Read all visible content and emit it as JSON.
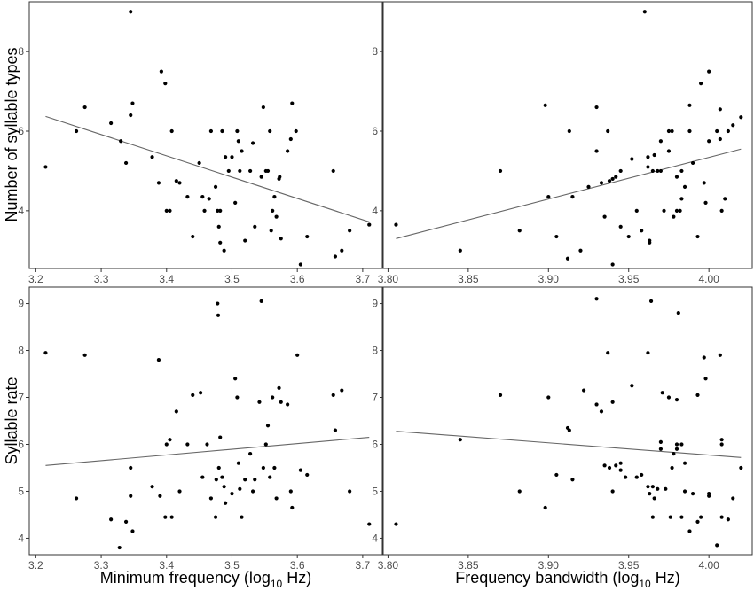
{
  "chart_data": [
    {
      "type": "scatter",
      "panel": "top-left",
      "xlabel": "",
      "ylabel": "Number of syllable types",
      "xlim": [
        3.19,
        3.73
      ],
      "ylim": [
        2.55,
        9.25
      ],
      "xticks": [
        3.2,
        3.3,
        3.4,
        3.5,
        3.6,
        3.7
      ],
      "xtick_labels": [
        "3.2",
        "3.3",
        "3.4",
        "3.5",
        "3.6",
        "3.7"
      ],
      "yticks": [
        4,
        6,
        8
      ],
      "ytick_labels": [
        "4",
        "6",
        "8"
      ],
      "trend_line": {
        "x": [
          3.215,
          3.71
        ],
        "y": [
          6.37,
          3.72
        ]
      },
      "points": [
        {
          "x": 3.215,
          "y": 5.1
        },
        {
          "x": 3.262,
          "y": 6.0
        },
        {
          "x": 3.275,
          "y": 6.6
        },
        {
          "x": 3.315,
          "y": 6.2
        },
        {
          "x": 3.33,
          "y": 5.75
        },
        {
          "x": 3.338,
          "y": 5.2
        },
        {
          "x": 3.345,
          "y": 6.4
        },
        {
          "x": 3.348,
          "y": 6.7
        },
        {
          "x": 3.345,
          "y": 9.0
        },
        {
          "x": 3.378,
          "y": 5.35
        },
        {
          "x": 3.388,
          "y": 4.7
        },
        {
          "x": 3.392,
          "y": 7.5
        },
        {
          "x": 3.398,
          "y": 7.2
        },
        {
          "x": 3.4,
          "y": 4.0
        },
        {
          "x": 3.405,
          "y": 4.0
        },
        {
          "x": 3.408,
          "y": 6.0
        },
        {
          "x": 3.415,
          "y": 4.75
        },
        {
          "x": 3.42,
          "y": 4.7
        },
        {
          "x": 3.432,
          "y": 4.35
        },
        {
          "x": 3.44,
          "y": 3.35
        },
        {
          "x": 3.45,
          "y": 5.2
        },
        {
          "x": 3.455,
          "y": 4.35
        },
        {
          "x": 3.458,
          "y": 4.0
        },
        {
          "x": 3.465,
          "y": 4.3
        },
        {
          "x": 3.468,
          "y": 6.0
        },
        {
          "x": 3.475,
          "y": 4.6
        },
        {
          "x": 3.478,
          "y": 4.0
        },
        {
          "x": 3.48,
          "y": 3.6
        },
        {
          "x": 3.482,
          "y": 4.0
        },
        {
          "x": 3.482,
          "y": 3.2
        },
        {
          "x": 3.485,
          "y": 6.0
        },
        {
          "x": 3.488,
          "y": 3.0
        },
        {
          "x": 3.49,
          "y": 5.35
        },
        {
          "x": 3.495,
          "y": 5.0
        },
        {
          "x": 3.5,
          "y": 5.35
        },
        {
          "x": 3.505,
          "y": 4.2
        },
        {
          "x": 3.508,
          "y": 6.0
        },
        {
          "x": 3.51,
          "y": 5.75
        },
        {
          "x": 3.512,
          "y": 5.0
        },
        {
          "x": 3.515,
          "y": 5.5
        },
        {
          "x": 3.52,
          "y": 3.25
        },
        {
          "x": 3.528,
          "y": 5.0
        },
        {
          "x": 3.532,
          "y": 5.7
        },
        {
          "x": 3.535,
          "y": 3.6
        },
        {
          "x": 3.545,
          "y": 4.85
        },
        {
          "x": 3.548,
          "y": 6.6
        },
        {
          "x": 3.552,
          "y": 5.0
        },
        {
          "x": 3.555,
          "y": 5.0
        },
        {
          "x": 3.558,
          "y": 6.0
        },
        {
          "x": 3.56,
          "y": 3.5
        },
        {
          "x": 3.562,
          "y": 4.0
        },
        {
          "x": 3.565,
          "y": 4.35
        },
        {
          "x": 3.568,
          "y": 3.85
        },
        {
          "x": 3.572,
          "y": 4.8
        },
        {
          "x": 3.573,
          "y": 4.85
        },
        {
          "x": 3.575,
          "y": 3.3
        },
        {
          "x": 3.585,
          "y": 5.5
        },
        {
          "x": 3.59,
          "y": 5.8
        },
        {
          "x": 3.592,
          "y": 6.7
        },
        {
          "x": 3.598,
          "y": 6.0
        },
        {
          "x": 3.605,
          "y": 2.65
        },
        {
          "x": 3.615,
          "y": 3.35
        },
        {
          "x": 3.655,
          "y": 5.0
        },
        {
          "x": 3.658,
          "y": 2.85
        },
        {
          "x": 3.668,
          "y": 3.0
        },
        {
          "x": 3.68,
          "y": 3.5
        },
        {
          "x": 3.71,
          "y": 3.65
        }
      ]
    },
    {
      "type": "scatter",
      "panel": "top-right",
      "xlabel": "",
      "ylabel": "",
      "xlim": [
        3.797,
        4.027
      ],
      "ylim": [
        2.55,
        9.25
      ],
      "xticks": [
        3.8,
        3.85,
        3.9,
        3.95,
        4.0
      ],
      "xtick_labels": [
        "3.80",
        "3.85",
        "3.90",
        "3.95",
        "4.00"
      ],
      "yticks": [
        4,
        6,
        8
      ],
      "ytick_labels": [
        "4",
        "6",
        "8"
      ],
      "trend_line": {
        "x": [
          3.805,
          4.02
        ],
        "y": [
          3.3,
          5.55
        ]
      },
      "points": [
        {
          "x": 3.805,
          "y": 3.65
        },
        {
          "x": 3.845,
          "y": 3.0
        },
        {
          "x": 3.87,
          "y": 5.0
        },
        {
          "x": 3.882,
          "y": 3.5
        },
        {
          "x": 3.898,
          "y": 6.65
        },
        {
          "x": 3.9,
          "y": 4.35
        },
        {
          "x": 3.905,
          "y": 3.35
        },
        {
          "x": 3.913,
          "y": 6.0
        },
        {
          "x": 3.912,
          "y": 2.8
        },
        {
          "x": 3.915,
          "y": 4.35
        },
        {
          "x": 3.92,
          "y": 3.0
        },
        {
          "x": 3.925,
          "y": 4.6
        },
        {
          "x": 3.93,
          "y": 6.6
        },
        {
          "x": 3.93,
          "y": 5.5
        },
        {
          "x": 3.933,
          "y": 4.7
        },
        {
          "x": 3.935,
          "y": 3.85
        },
        {
          "x": 3.937,
          "y": 6.0
        },
        {
          "x": 3.938,
          "y": 4.75
        },
        {
          "x": 3.94,
          "y": 4.8
        },
        {
          "x": 3.94,
          "y": 2.65
        },
        {
          "x": 3.942,
          "y": 4.85
        },
        {
          "x": 3.945,
          "y": 3.6
        },
        {
          "x": 3.945,
          "y": 5.0
        },
        {
          "x": 3.95,
          "y": 3.35
        },
        {
          "x": 3.952,
          "y": 5.3
        },
        {
          "x": 3.955,
          "y": 4.0
        },
        {
          "x": 3.958,
          "y": 3.5
        },
        {
          "x": 3.96,
          "y": 9.0
        },
        {
          "x": 3.962,
          "y": 5.1
        },
        {
          "x": 3.962,
          "y": 5.35
        },
        {
          "x": 3.963,
          "y": 3.25
        },
        {
          "x": 3.963,
          "y": 3.2
        },
        {
          "x": 3.965,
          "y": 5.0
        },
        {
          "x": 3.966,
          "y": 5.4
        },
        {
          "x": 3.968,
          "y": 5.0
        },
        {
          "x": 3.97,
          "y": 5.75
        },
        {
          "x": 3.97,
          "y": 5.0
        },
        {
          "x": 3.972,
          "y": 4.0
        },
        {
          "x": 3.975,
          "y": 5.5
        },
        {
          "x": 3.975,
          "y": 6.0
        },
        {
          "x": 3.977,
          "y": 6.0
        },
        {
          "x": 3.978,
          "y": 3.85
        },
        {
          "x": 3.98,
          "y": 4.0
        },
        {
          "x": 3.98,
          "y": 4.85
        },
        {
          "x": 3.982,
          "y": 4.0
        },
        {
          "x": 3.983,
          "y": 4.3
        },
        {
          "x": 3.983,
          "y": 5.0
        },
        {
          "x": 3.985,
          "y": 4.6
        },
        {
          "x": 3.988,
          "y": 6.65
        },
        {
          "x": 3.988,
          "y": 6.0
        },
        {
          "x": 3.99,
          "y": 5.2
        },
        {
          "x": 3.993,
          "y": 3.35
        },
        {
          "x": 3.995,
          "y": 7.2
        },
        {
          "x": 3.997,
          "y": 4.7
        },
        {
          "x": 3.998,
          "y": 4.2
        },
        {
          "x": 4.0,
          "y": 7.5
        },
        {
          "x": 4.0,
          "y": 5.75
        },
        {
          "x": 4.005,
          "y": 6.0
        },
        {
          "x": 4.007,
          "y": 6.55
        },
        {
          "x": 4.007,
          "y": 5.8
        },
        {
          "x": 4.008,
          "y": 4.0
        },
        {
          "x": 4.01,
          "y": 4.3
        },
        {
          "x": 4.012,
          "y": 6.0
        },
        {
          "x": 4.015,
          "y": 6.15
        },
        {
          "x": 4.02,
          "y": 6.35
        }
      ]
    },
    {
      "type": "scatter",
      "panel": "bottom-left",
      "xlabel": "Minimum frequency (log10 Hz)",
      "ylabel": "Syllable rate",
      "xlim": [
        3.19,
        3.73
      ],
      "ylim": [
        3.65,
        9.35
      ],
      "xticks": [
        3.2,
        3.3,
        3.4,
        3.5,
        3.6,
        3.7
      ],
      "xtick_labels": [
        "3.2",
        "3.3",
        "3.4",
        "3.5",
        "3.6",
        "3.7"
      ],
      "yticks": [
        4,
        5,
        6,
        7,
        8,
        9
      ],
      "ytick_labels": [
        "4",
        "5",
        "6",
        "7",
        "8",
        "9"
      ],
      "trend_line": {
        "x": [
          3.215,
          3.71
        ],
        "y": [
          5.55,
          6.15
        ]
      },
      "points": [
        {
          "x": 3.215,
          "y": 7.95
        },
        {
          "x": 3.262,
          "y": 4.85
        },
        {
          "x": 3.275,
          "y": 7.9
        },
        {
          "x": 3.315,
          "y": 4.4
        },
        {
          "x": 3.328,
          "y": 3.8
        },
        {
          "x": 3.338,
          "y": 4.35
        },
        {
          "x": 3.345,
          "y": 5.5
        },
        {
          "x": 3.345,
          "y": 4.9
        },
        {
          "x": 3.348,
          "y": 4.15
        },
        {
          "x": 3.378,
          "y": 5.1
        },
        {
          "x": 3.388,
          "y": 7.8
        },
        {
          "x": 3.39,
          "y": 4.9
        },
        {
          "x": 3.398,
          "y": 4.45
        },
        {
          "x": 3.4,
          "y": 6.0
        },
        {
          "x": 3.405,
          "y": 6.1
        },
        {
          "x": 3.408,
          "y": 4.45
        },
        {
          "x": 3.415,
          "y": 6.7
        },
        {
          "x": 3.42,
          "y": 5.0
        },
        {
          "x": 3.432,
          "y": 6.0
        },
        {
          "x": 3.44,
          "y": 7.05
        },
        {
          "x": 3.452,
          "y": 7.1
        },
        {
          "x": 3.455,
          "y": 5.3
        },
        {
          "x": 3.462,
          "y": 6.0
        },
        {
          "x": 3.468,
          "y": 4.85
        },
        {
          "x": 3.475,
          "y": 4.45
        },
        {
          "x": 3.476,
          "y": 5.25
        },
        {
          "x": 3.478,
          "y": 9.0
        },
        {
          "x": 3.479,
          "y": 8.75
        },
        {
          "x": 3.48,
          "y": 5.5
        },
        {
          "x": 3.482,
          "y": 6.15
        },
        {
          "x": 3.485,
          "y": 5.3
        },
        {
          "x": 3.488,
          "y": 5.1
        },
        {
          "x": 3.49,
          "y": 4.75
        },
        {
          "x": 3.5,
          "y": 4.95
        },
        {
          "x": 3.505,
          "y": 7.4
        },
        {
          "x": 3.508,
          "y": 7.0
        },
        {
          "x": 3.51,
          "y": 5.6
        },
        {
          "x": 3.512,
          "y": 5.05
        },
        {
          "x": 3.515,
          "y": 4.45
        },
        {
          "x": 3.52,
          "y": 5.25
        },
        {
          "x": 3.528,
          "y": 5.8
        },
        {
          "x": 3.532,
          "y": 5.0
        },
        {
          "x": 3.535,
          "y": 5.25
        },
        {
          "x": 3.542,
          "y": 6.9
        },
        {
          "x": 3.545,
          "y": 9.05
        },
        {
          "x": 3.548,
          "y": 5.5
        },
        {
          "x": 3.552,
          "y": 6.0
        },
        {
          "x": 3.555,
          "y": 6.4
        },
        {
          "x": 3.558,
          "y": 5.3
        },
        {
          "x": 3.562,
          "y": 7.0
        },
        {
          "x": 3.565,
          "y": 5.5
        },
        {
          "x": 3.568,
          "y": 4.85
        },
        {
          "x": 3.572,
          "y": 7.2
        },
        {
          "x": 3.575,
          "y": 6.9
        },
        {
          "x": 3.585,
          "y": 6.85
        },
        {
          "x": 3.59,
          "y": 5.0
        },
        {
          "x": 3.592,
          "y": 4.65
        },
        {
          "x": 3.6,
          "y": 7.9
        },
        {
          "x": 3.605,
          "y": 5.45
        },
        {
          "x": 3.615,
          "y": 5.35
        },
        {
          "x": 3.655,
          "y": 7.05
        },
        {
          "x": 3.658,
          "y": 6.3
        },
        {
          "x": 3.668,
          "y": 7.15
        },
        {
          "x": 3.68,
          "y": 5.0
        },
        {
          "x": 3.71,
          "y": 4.3
        }
      ]
    },
    {
      "type": "scatter",
      "panel": "bottom-right",
      "xlabel": "Frequency bandwidth (log10 Hz)",
      "ylabel": "",
      "xlim": [
        3.797,
        4.027
      ],
      "ylim": [
        3.65,
        9.35
      ],
      "xticks": [
        3.8,
        3.85,
        3.9,
        3.95,
        4.0
      ],
      "xtick_labels": [
        "3.80",
        "3.85",
        "3.90",
        "3.95",
        "4.00"
      ],
      "yticks": [
        4,
        5,
        6,
        7,
        8,
        9
      ],
      "ytick_labels": [
        "4",
        "5",
        "6",
        "7",
        "8",
        "9"
      ],
      "trend_line": {
        "x": [
          3.805,
          4.02
        ],
        "y": [
          6.28,
          5.72
        ]
      },
      "points": [
        {
          "x": 3.805,
          "y": 4.3
        },
        {
          "x": 3.845,
          "y": 6.1
        },
        {
          "x": 3.87,
          "y": 7.05
        },
        {
          "x": 3.882,
          "y": 5.0
        },
        {
          "x": 3.898,
          "y": 4.65
        },
        {
          "x": 3.9,
          "y": 7.0
        },
        {
          "x": 3.905,
          "y": 5.35
        },
        {
          "x": 3.912,
          "y": 6.35
        },
        {
          "x": 3.913,
          "y": 6.3
        },
        {
          "x": 3.915,
          "y": 5.25
        },
        {
          "x": 3.922,
          "y": 7.15
        },
        {
          "x": 3.93,
          "y": 9.1
        },
        {
          "x": 3.93,
          "y": 6.85
        },
        {
          "x": 3.933,
          "y": 6.7
        },
        {
          "x": 3.935,
          "y": 5.55
        },
        {
          "x": 3.937,
          "y": 7.95
        },
        {
          "x": 3.938,
          "y": 5.5
        },
        {
          "x": 3.94,
          "y": 6.9
        },
        {
          "x": 3.94,
          "y": 5.0
        },
        {
          "x": 3.942,
          "y": 5.55
        },
        {
          "x": 3.945,
          "y": 5.45
        },
        {
          "x": 3.945,
          "y": 5.6
        },
        {
          "x": 3.948,
          "y": 5.3
        },
        {
          "x": 3.952,
          "y": 7.25
        },
        {
          "x": 3.955,
          "y": 5.3
        },
        {
          "x": 3.958,
          "y": 5.35
        },
        {
          "x": 3.962,
          "y": 7.95
        },
        {
          "x": 3.962,
          "y": 5.1
        },
        {
          "x": 3.963,
          "y": 4.95
        },
        {
          "x": 3.964,
          "y": 9.05
        },
        {
          "x": 3.965,
          "y": 5.1
        },
        {
          "x": 3.965,
          "y": 4.45
        },
        {
          "x": 3.966,
          "y": 4.85
        },
        {
          "x": 3.968,
          "y": 5.05
        },
        {
          "x": 3.97,
          "y": 6.05
        },
        {
          "x": 3.97,
          "y": 5.9
        },
        {
          "x": 3.971,
          "y": 7.1
        },
        {
          "x": 3.973,
          "y": 5.05
        },
        {
          "x": 3.975,
          "y": 7.0
        },
        {
          "x": 3.976,
          "y": 4.45
        },
        {
          "x": 3.977,
          "y": 5.5
        },
        {
          "x": 3.978,
          "y": 5.8
        },
        {
          "x": 3.98,
          "y": 6.95
        },
        {
          "x": 3.98,
          "y": 5.9
        },
        {
          "x": 3.98,
          "y": 6.0
        },
        {
          "x": 3.981,
          "y": 8.8
        },
        {
          "x": 3.983,
          "y": 6.0
        },
        {
          "x": 3.983,
          "y": 4.45
        },
        {
          "x": 3.985,
          "y": 5.0
        },
        {
          "x": 3.985,
          "y": 5.6
        },
        {
          "x": 3.988,
          "y": 4.15
        },
        {
          "x": 3.99,
          "y": 4.95
        },
        {
          "x": 3.993,
          "y": 4.35
        },
        {
          "x": 3.993,
          "y": 7.05
        },
        {
          "x": 3.995,
          "y": 4.45
        },
        {
          "x": 3.997,
          "y": 7.85
        },
        {
          "x": 3.998,
          "y": 7.4
        },
        {
          "x": 4.0,
          "y": 4.9
        },
        {
          "x": 4.0,
          "y": 4.95
        },
        {
          "x": 4.005,
          "y": 3.85
        },
        {
          "x": 4.007,
          "y": 7.9
        },
        {
          "x": 4.008,
          "y": 6.1
        },
        {
          "x": 4.008,
          "y": 6.0
        },
        {
          "x": 4.008,
          "y": 4.45
        },
        {
          "x": 4.012,
          "y": 4.4
        },
        {
          "x": 4.015,
          "y": 4.85
        },
        {
          "x": 4.02,
          "y": 5.5
        }
      ]
    }
  ]
}
